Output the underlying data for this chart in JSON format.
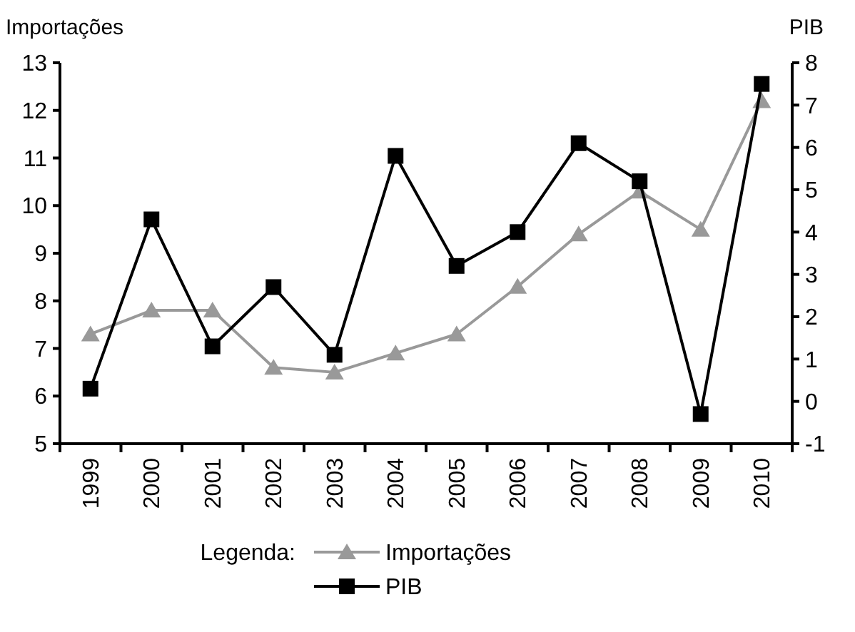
{
  "chart_data": {
    "type": "line",
    "xlabel": null,
    "ylabel": "Importações",
    "y2label": "PIB",
    "legend_title": "Legenda:",
    "categories": [
      "1999",
      "2000",
      "2001",
      "2002",
      "2003",
      "2004",
      "2005",
      "2006",
      "2007",
      "2008",
      "2009",
      "2010"
    ],
    "series": [
      {
        "name": "Importações",
        "color": "#999999",
        "marker": "triangle",
        "values": [
          7.3,
          7.8,
          7.8,
          6.6,
          6.5,
          6.9,
          7.3,
          8.3,
          9.4,
          10.3,
          9.5,
          12.2
        ]
      },
      {
        "name": "PIB",
        "color": "#000000",
        "marker": "square",
        "axis": "y2",
        "values": [
          0.3,
          4.3,
          1.3,
          2.7,
          1.1,
          5.8,
          3.2,
          4.0,
          6.1,
          5.2,
          -0.3,
          7.5
        ]
      }
    ],
    "ylim": [
      5,
      13
    ],
    "yticks": [
      5,
      6,
      7,
      8,
      9,
      10,
      11,
      12,
      13
    ],
    "y2lim": [
      -1,
      8
    ],
    "y2ticks": [
      -1,
      0,
      1,
      2,
      3,
      4,
      5,
      6,
      7,
      8
    ],
    "grid": false,
    "legend": "bottom",
    "line_style": "solid"
  }
}
